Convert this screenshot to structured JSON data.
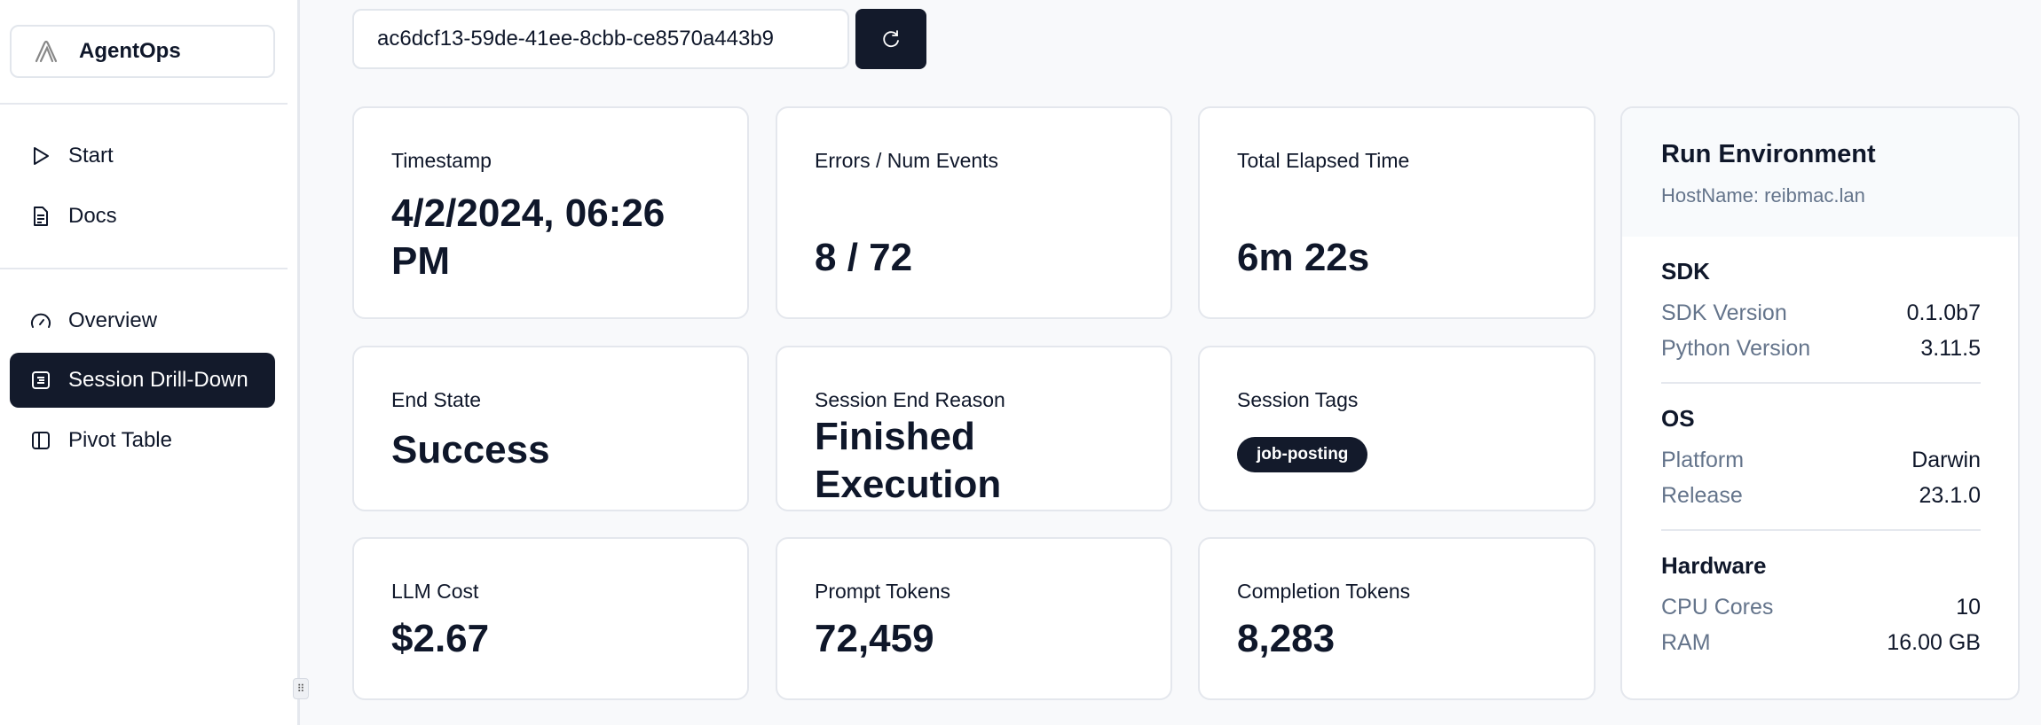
{
  "sidebar": {
    "brand": "AgentOps",
    "items": [
      {
        "label": "Start",
        "icon": "play-icon"
      },
      {
        "label": "Docs",
        "icon": "document-icon"
      },
      {
        "label": "Overview",
        "icon": "gauge-icon"
      },
      {
        "label": "Session Drill-Down",
        "icon": "list-icon",
        "active": true
      },
      {
        "label": "Pivot Table",
        "icon": "panel-icon"
      }
    ]
  },
  "session": {
    "id": "ac6dcf13-59de-41ee-8cbb-ce8570a443b9",
    "refresh_icon": "refresh-icon"
  },
  "cards": [
    {
      "label": "Timestamp",
      "value": "4/2/2024, 06:26 PM"
    },
    {
      "label": "Errors / Num Events",
      "value": "8 / 72"
    },
    {
      "label": "Total Elapsed Time",
      "value": "6m 22s"
    },
    {
      "label": "End State",
      "value": "Success"
    },
    {
      "label": "Session End Reason",
      "value": "Finished Execution"
    },
    {
      "label": "Session Tags",
      "tags": [
        "job-posting"
      ]
    },
    {
      "label": "LLM Cost",
      "value": "$2.67"
    },
    {
      "label": "Prompt Tokens",
      "value": "72,459"
    },
    {
      "label": "Completion Tokens",
      "value": "8,283"
    }
  ],
  "env": {
    "title": "Run Environment",
    "host": "HostName: reibmac.lan",
    "sections": [
      {
        "title": "SDK",
        "rows": [
          {
            "k": "SDK Version",
            "v": "0.1.0b7"
          },
          {
            "k": "Python Version",
            "v": "3.11.5"
          }
        ]
      },
      {
        "title": "OS",
        "rows": [
          {
            "k": "Platform",
            "v": "Darwin"
          },
          {
            "k": "Release",
            "v": "23.1.0"
          }
        ]
      },
      {
        "title": "Hardware",
        "rows": [
          {
            "k": "CPU Cores",
            "v": "10"
          },
          {
            "k": "RAM",
            "v": "16.00 GB"
          }
        ]
      }
    ]
  },
  "colors": {
    "primary": "#131a2b",
    "muted": "#64748b",
    "background": "#f8f9fb"
  }
}
